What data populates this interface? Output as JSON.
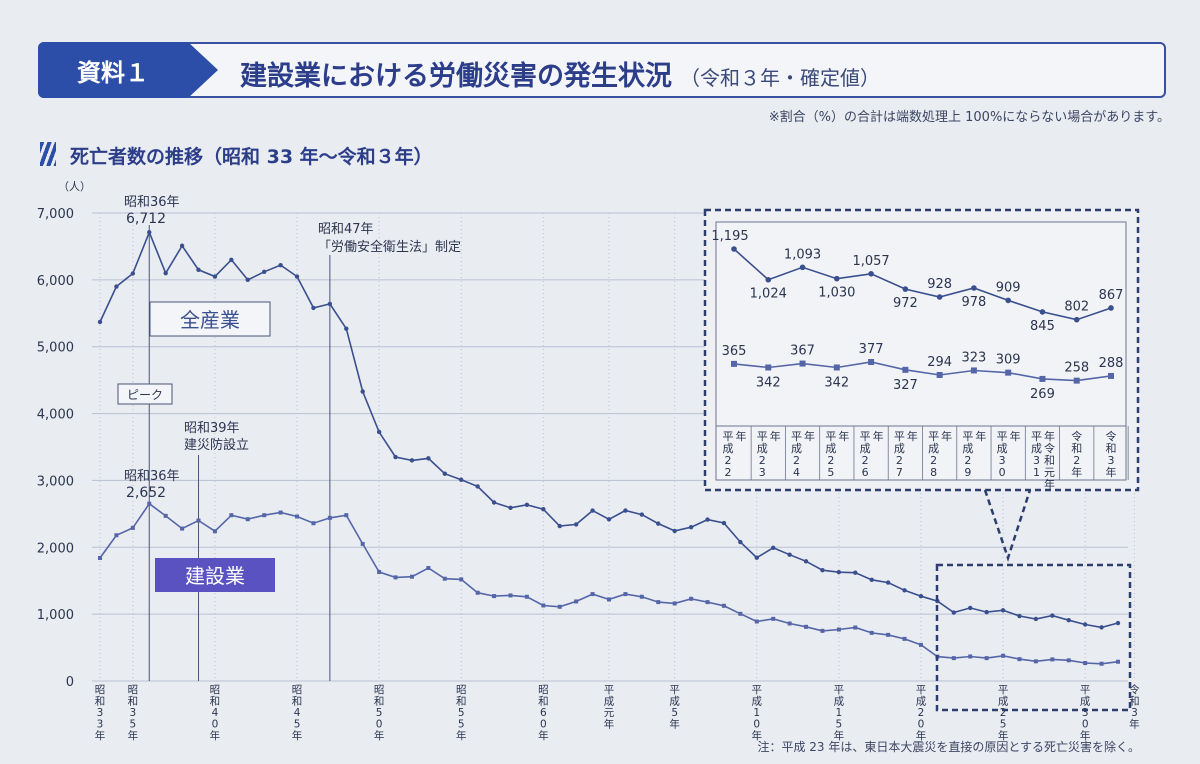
{
  "header": {
    "badge": "資料１",
    "title": "建設業における労働災害の発生状況",
    "subtitle": "（令和３年・確定値）"
  },
  "note_top": "※割合（%）の合計は端数処理上 100%にならない場合があります。",
  "section_title": "死亡者数の推移（昭和 33 年～令和３年）",
  "note_bottom": "注：平成 23 年は、東日本大震災を直接の原因とする死亡災害を除く。",
  "colors": {
    "series_all": "#3a4f8e",
    "series_const": "#5566a8",
    "accent": "#2c4ea8",
    "grid": "#b8c0d2"
  },
  "chart_data": {
    "type": "line",
    "y_unit": "（人）",
    "ylim": [
      0,
      7000
    ],
    "yticks": [
      "0",
      "1,000",
      "2,000",
      "3,000",
      "4,000",
      "5,000",
      "6,000",
      "7,000"
    ],
    "x_start_year": 1958,
    "x_tick_labels": [
      {
        "year": 1958,
        "text": "昭和33年"
      },
      {
        "year": 1960,
        "text": "昭和35年"
      },
      {
        "year": 1965,
        "text": "昭和40年"
      },
      {
        "year": 1970,
        "text": "昭和45年"
      },
      {
        "year": 1975,
        "text": "昭和50年"
      },
      {
        "year": 1980,
        "text": "昭和55年"
      },
      {
        "year": 1985,
        "text": "昭和60年"
      },
      {
        "year": 1989,
        "text": "平成元年"
      },
      {
        "year": 1993,
        "text": "平成5年"
      },
      {
        "year": 1998,
        "text": "平成10年"
      },
      {
        "year": 2003,
        "text": "平成15年"
      },
      {
        "year": 2008,
        "text": "平成20年"
      },
      {
        "year": 2013,
        "text": "平成25年"
      },
      {
        "year": 2018,
        "text": "平成30年"
      },
      {
        "year": 2021,
        "text": "令和3年"
      }
    ],
    "series": [
      {
        "name": "全産業",
        "values": [
          5370,
          5900,
          6095,
          6712,
          6100,
          6510,
          6150,
          6050,
          6300,
          6000,
          6120,
          6220,
          6050,
          5580,
          5640,
          5270,
          4330,
          3725,
          3350,
          3300,
          3330,
          3100,
          3010,
          2910,
          2670,
          2590,
          2635,
          2570,
          2318,
          2342,
          2549,
          2419,
          2550,
          2489,
          2354,
          2245,
          2301,
          2414,
          2363,
          2078,
          1844,
          1992,
          1889,
          1790,
          1658,
          1628,
          1620,
          1514,
          1472,
          1357,
          1268,
          1195,
          1024,
          1093,
          1030,
          1057,
          972,
          928,
          978,
          909,
          845,
          802,
          867
        ]
      },
      {
        "name": "建設業",
        "values": [
          1840,
          2180,
          2290,
          2652,
          2470,
          2280,
          2400,
          2240,
          2480,
          2420,
          2480,
          2520,
          2460,
          2360,
          2440,
          2480,
          2050,
          1630,
          1550,
          1560,
          1690,
          1530,
          1520,
          1320,
          1270,
          1280,
          1260,
          1130,
          1110,
          1190,
          1300,
          1220,
          1300,
          1260,
          1180,
          1160,
          1230,
          1180,
          1125,
          1005,
          890,
          930,
          860,
          810,
          750,
          770,
          800,
          720,
          690,
          630,
          540,
          365,
          342,
          367,
          342,
          377,
          327,
          294,
          323,
          309,
          269,
          258,
          288
        ]
      }
    ],
    "annotations": [
      {
        "text": "昭和36年",
        "value": "6,712"
      },
      {
        "text": "昭和36年",
        "value": "2,652"
      },
      {
        "text": "ピーク"
      },
      {
        "text": "昭和39年",
        "text2": "建災防設立"
      },
      {
        "text": "昭和47年",
        "text2": "「労働安全衛生法」制定"
      }
    ],
    "inset": {
      "labels": [
        "平成22年",
        "平成23年",
        "平成24年",
        "平成25年",
        "平成26年",
        "平成27年",
        "平成28年",
        "平成29年",
        "平成30年",
        "平成31年令和元年",
        "令和2年",
        "令和3年"
      ],
      "all_labels": [
        "1,195",
        "1,024",
        "1,093",
        "1,030",
        "1,057",
        "972",
        "928",
        "978",
        "909",
        "845",
        "802",
        "867"
      ],
      "const_labels": [
        "365",
        "342",
        "367",
        "342",
        "377",
        "327",
        "294",
        "323",
        "309",
        "269",
        "258",
        "288"
      ]
    }
  }
}
